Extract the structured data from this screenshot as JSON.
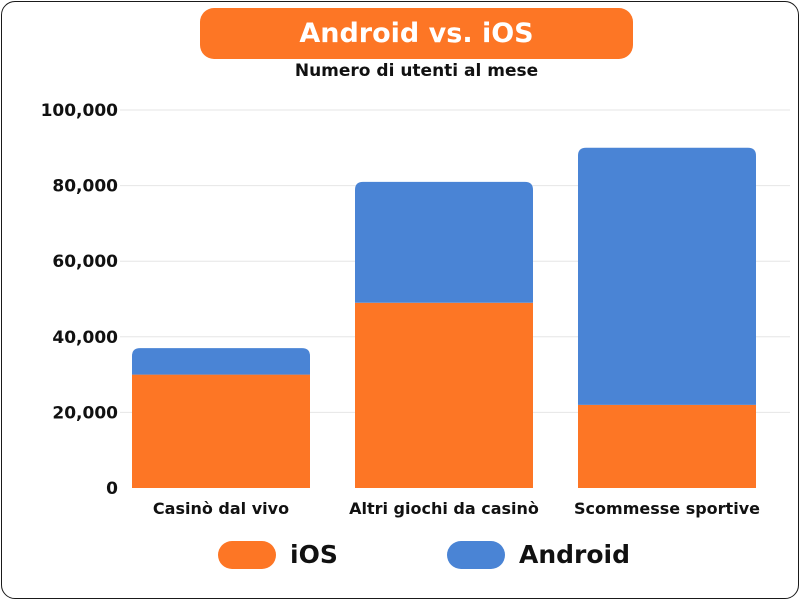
{
  "chart_data": {
    "type": "bar",
    "stacked": true,
    "title": "Android vs. iOS",
    "subtitle": "Numero di utenti al mese",
    "categories": [
      "Casinò dal vivo",
      "Altri giochi da casinò",
      "Scommesse sportive"
    ],
    "series": [
      {
        "name": "iOS",
        "color": "#fd7625",
        "values": [
          30000,
          49000,
          22000
        ]
      },
      {
        "name": "Android",
        "color": "#4a84d5",
        "values": [
          7000,
          32000,
          68000
        ]
      }
    ],
    "ylim": [
      0,
      100000
    ],
    "yticks": [
      "0",
      "20,000",
      "40,000",
      "60,000",
      "80,000",
      "100,000"
    ],
    "ytick_values": [
      0,
      20000,
      40000,
      60000,
      80000,
      100000
    ],
    "grid": true,
    "legend_position": "bottom"
  }
}
